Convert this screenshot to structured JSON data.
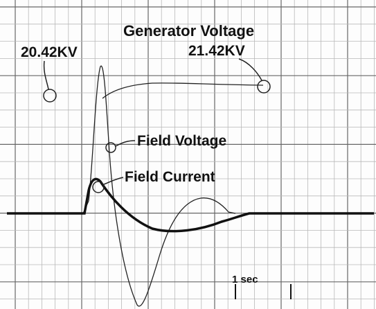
{
  "title": "Generator Voltage",
  "labels": {
    "initial_voltage": "20.42KV",
    "final_voltage": "21.42KV",
    "field_voltage": "Field Voltage",
    "field_current": "Field Current",
    "time_scale": "1 sec"
  }
}
